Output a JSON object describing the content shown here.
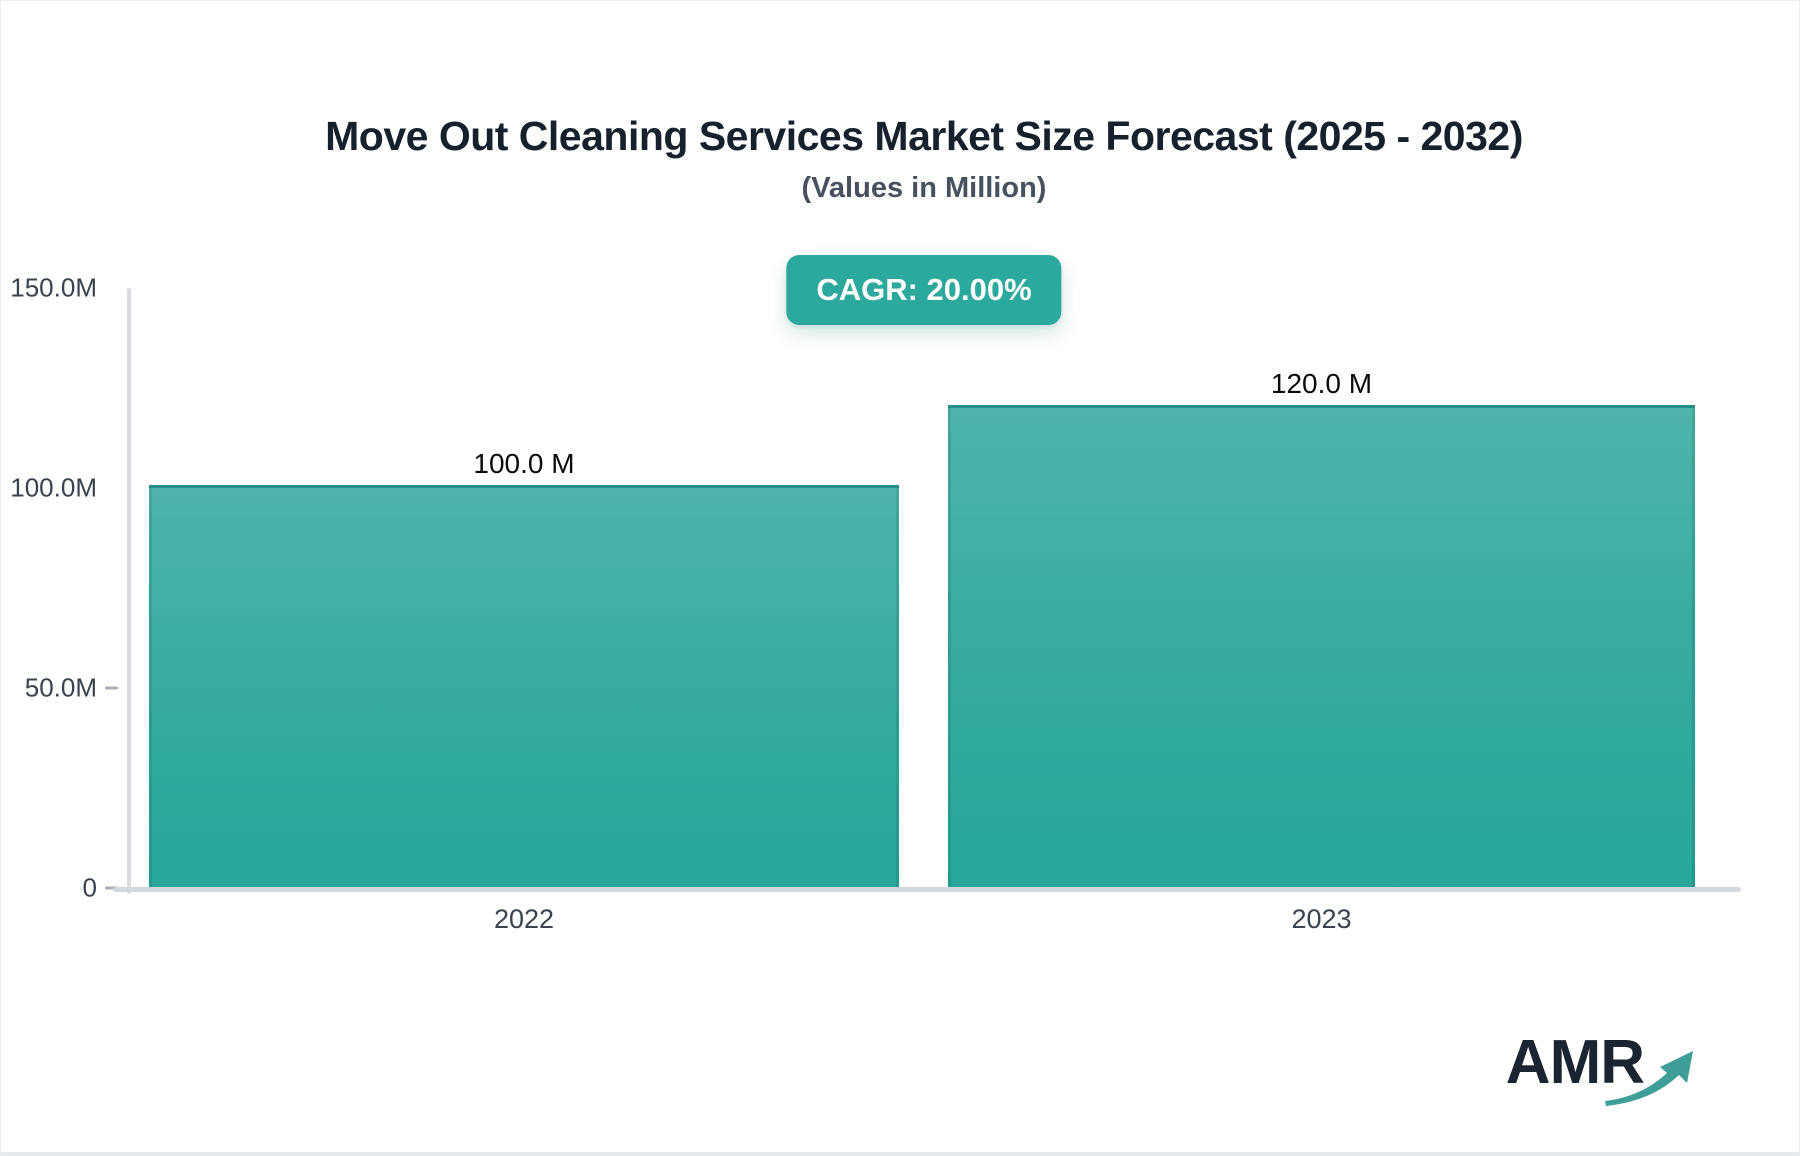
{
  "header": {
    "title": "Move Out Cleaning Services Market Size Forecast (2025 - 2032)",
    "subtitle": "(Values in Million)",
    "cagr_label": "CAGR: 20.00%"
  },
  "branding": {
    "logo_text": "AMR",
    "logo_arrow_icon": "trend-up-arrow"
  },
  "colors": {
    "accent_teal": "#2aa99c",
    "bar_gradient_top": "#4fb5ab",
    "bar_gradient_bottom": "#27a79a",
    "bar_top_edge": "#238f87",
    "axis_line": "#d7dadd",
    "tick_mark": "#a8aeb6",
    "title_text": "#16212c",
    "subtitle_text": "#47515d",
    "axis_label_text": "#39434e",
    "value_label_text": "#0b0b0b",
    "badge_text": "#ffffff",
    "logo_navy": "#1b2531",
    "logo_arrow_teal": "#3f9e98"
  },
  "chart_data": {
    "type": "bar",
    "title": "Move Out Cleaning Services Market Size Forecast (2025 - 2032)",
    "subtitle": "(Values in Million)",
    "cagr": "20.00%",
    "categories": [
      "2022",
      "2023"
    ],
    "values": [
      100.0,
      120.0
    ],
    "bar_labels": [
      "100.0 M",
      "120.0 M"
    ],
    "unit": "Million",
    "ylim": [
      0,
      150
    ],
    "y_ticks": [
      {
        "label": "150.0M",
        "value": 150,
        "tick_mark": false
      },
      {
        "label": "100.0M",
        "value": 100,
        "tick_mark": false
      },
      {
        "label": "50.0M",
        "value": 50,
        "tick_mark": true
      },
      {
        "label": "0",
        "value": 0,
        "tick_mark": true
      }
    ],
    "grid": false,
    "legend": false
  }
}
